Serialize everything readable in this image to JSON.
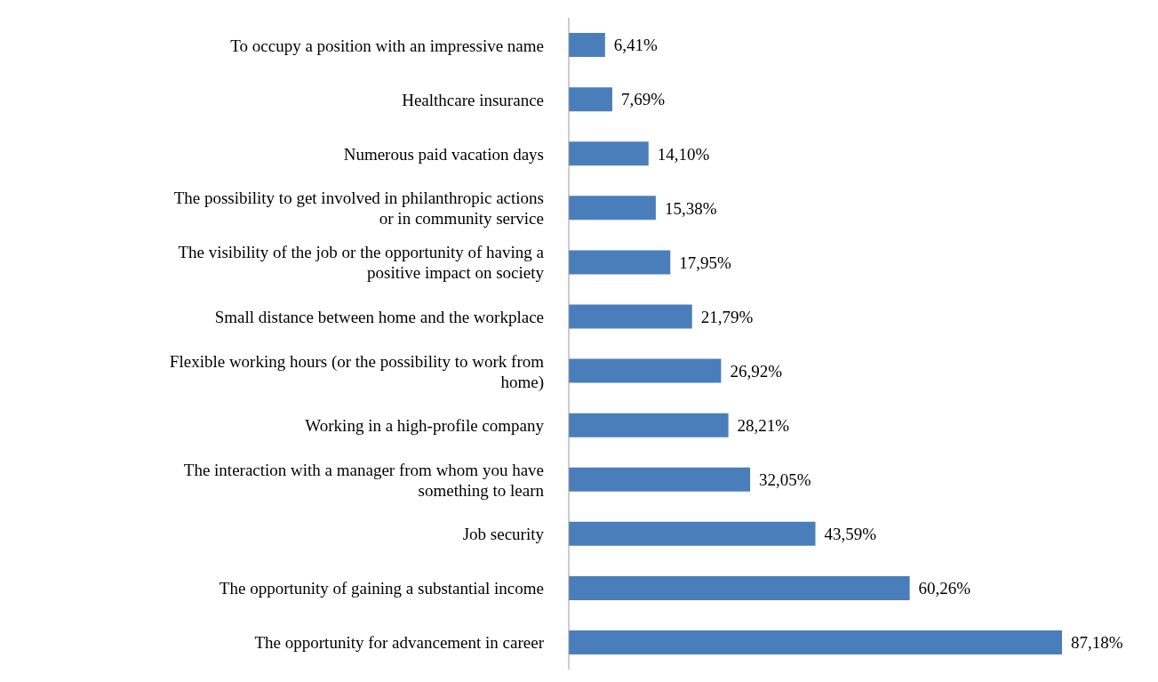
{
  "chart_data": {
    "type": "bar",
    "orientation": "horizontal",
    "color": "#4a7ebb",
    "legend": false,
    "grid": false,
    "categories": [
      "To occupy a position with an impressive name",
      "Healthcare insurance",
      "Numerous paid vacation days",
      "The possibility to get involved in philanthropic actions or in community service",
      "The visibility of the job or the opportunity of having a positive impact on society",
      "Small distance between home and the workplace",
      "Flexible working hours (or the possibility to work from home)",
      "Working in a high-profile company",
      "The interaction with a manager from whom you have something to learn",
      "Job security",
      "The opportunity of gaining a substantial income",
      "The opportunity for advancement in career"
    ],
    "values": [
      6.41,
      7.69,
      14.1,
      15.38,
      17.95,
      21.79,
      26.92,
      28.21,
      32.05,
      43.59,
      60.26,
      87.18
    ],
    "value_labels": [
      "6,41%",
      "7,69%",
      "14,10%",
      "15,38%",
      "17,95%",
      "21,79%",
      "26,92%",
      "28,21%",
      "32,05%",
      "43,59%",
      "60,26%",
      "87,18%"
    ]
  }
}
